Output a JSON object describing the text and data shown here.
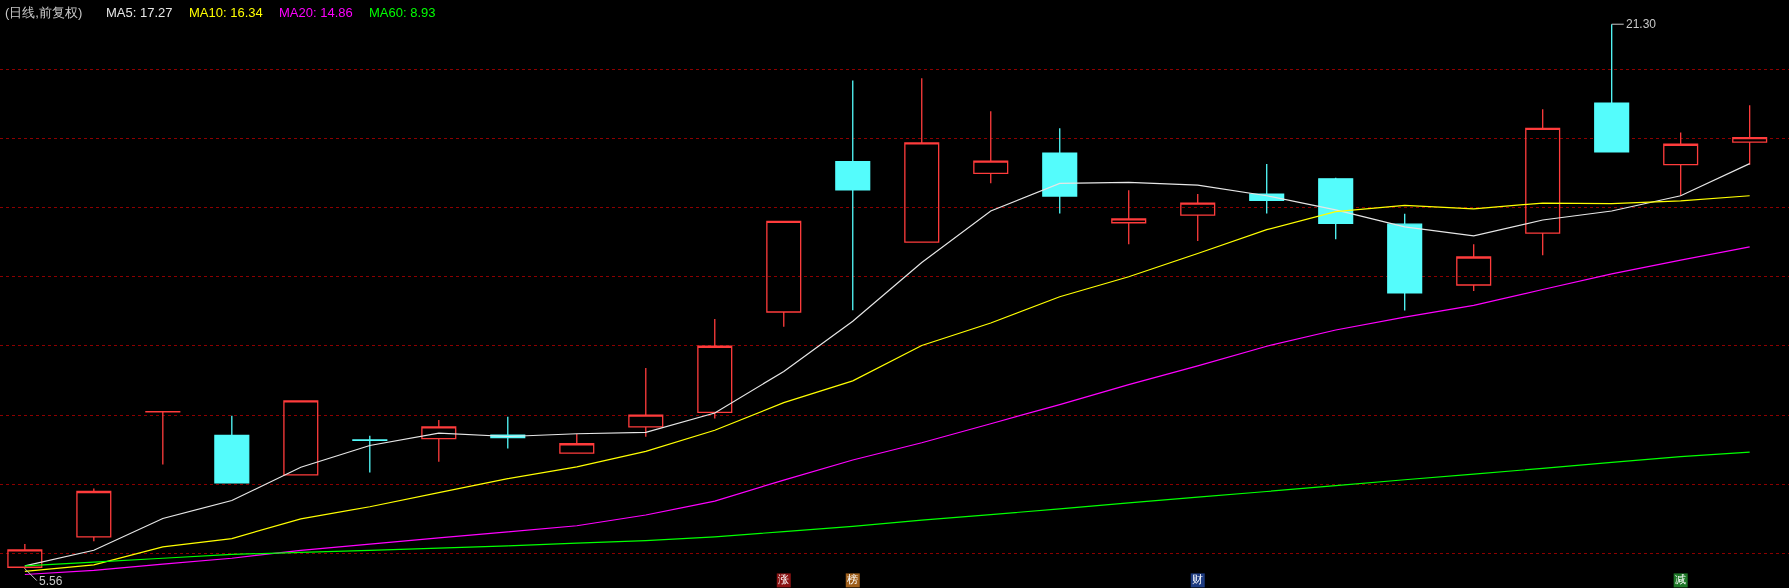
{
  "chart_data": {
    "type": "candlestick",
    "title": "(日线,前复权)",
    "categories": [
      null,
      null,
      null,
      null,
      null,
      null,
      null,
      null,
      null,
      null,
      null,
      null,
      null,
      null,
      null,
      null,
      null,
      null,
      null,
      null,
      null,
      null,
      null,
      null,
      null,
      null
    ],
    "ohlc": [
      [
        5.6,
        6.27,
        5.56,
        6.1
      ],
      [
        6.48,
        7.88,
        6.35,
        7.79
      ],
      [
        10.09,
        10.1,
        8.57,
        10.1
      ],
      [
        9.41,
        9.98,
        8.04,
        8.04
      ],
      [
        8.27,
        10.41,
        8.27,
        10.41
      ],
      [
        9.28,
        9.4,
        8.34,
        9.27
      ],
      [
        9.32,
        9.86,
        8.65,
        9.66
      ],
      [
        9.42,
        9.95,
        9.03,
        9.35
      ],
      [
        8.9,
        9.45,
        8.9,
        9.17
      ],
      [
        9.66,
        11.36,
        9.37,
        10.0
      ],
      [
        10.08,
        12.78,
        9.9,
        11.99
      ],
      [
        12.98,
        15.6,
        12.55,
        15.6
      ],
      [
        17.33,
        19.67,
        13.03,
        16.51
      ],
      [
        15.0,
        19.74,
        15.0,
        17.87
      ],
      [
        16.99,
        18.78,
        16.7,
        17.34
      ],
      [
        17.57,
        18.29,
        15.83,
        16.33
      ],
      [
        15.56,
        16.5,
        14.94,
        15.67
      ],
      [
        15.78,
        16.39,
        15.03,
        16.13
      ],
      [
        16.39,
        17.26,
        15.83,
        16.21
      ],
      [
        16.83,
        16.86,
        15.08,
        15.54
      ],
      [
        15.52,
        15.82,
        13.02,
        13.53
      ],
      [
        13.76,
        14.94,
        13.59,
        14.57
      ],
      [
        15.26,
        18.84,
        14.62,
        18.29
      ],
      [
        19.02,
        21.3,
        17.61,
        17.61
      ],
      [
        17.24,
        18.17,
        16.34,
        17.83
      ],
      [
        17.89,
        18.96,
        17.24,
        18.02
      ]
    ],
    "colors": [
      "#ff3c3c",
      "#ff3c3c",
      "#ff3c3c",
      "#54fcfc",
      "#ff3c3c",
      "#54fcfc",
      "#ff3c3c",
      "#54fcfc",
      "#ff3c3c",
      "#ff3c3c",
      "#ff3c3c",
      "#ff3c3c",
      "#54fcfc",
      "#ff3c3c",
      "#ff3c3c",
      "#54fcfc",
      "#ff3c3c",
      "#ff3c3c",
      "#54fcfc",
      "#54fcfc",
      "#54fcfc",
      "#ff3c3c",
      "#ff3c3c",
      "#54fcfc",
      "#ff3c3c",
      "#ff3c3c"
    ],
    "series": [
      {
        "name": "MA5: 17.27",
        "type": "line",
        "color": "#e6e6e6",
        "values": [
          5.64,
          6.09,
          7.01,
          7.53,
          8.49,
          9.12,
          9.48,
          9.38,
          9.46,
          9.5,
          10.06,
          11.26,
          12.71,
          14.41,
          15.9,
          16.7,
          16.73,
          16.65,
          16.34,
          15.93,
          15.44,
          15.18,
          15.64,
          15.9,
          16.34,
          17.27
        ]
      },
      {
        "name": "MA10: 16.34",
        "type": "line",
        "color": "#ffff00",
        "values": [
          5.48,
          5.67,
          6.19,
          6.43,
          7.0,
          7.35,
          7.76,
          8.16,
          8.5,
          8.95,
          9.56,
          10.36,
          10.99,
          12.01,
          12.66,
          13.42,
          14.0,
          14.67,
          15.36,
          15.88,
          16.06,
          15.96,
          16.13,
          16.11,
          16.19,
          16.34
        ]
      },
      {
        "name": "MA20: 14.86",
        "type": "line",
        "color": "#ff00ff",
        "values": [
          5.39,
          5.51,
          5.69,
          5.86,
          6.09,
          6.27,
          6.45,
          6.62,
          6.8,
          7.11,
          7.51,
          8.12,
          8.7,
          9.2,
          9.75,
          10.3,
          10.88,
          11.42,
          11.99,
          12.46,
          12.83,
          13.17,
          13.63,
          14.08,
          14.48,
          14.86
        ]
      },
      {
        "name": "MA60: 8.93",
        "type": "line",
        "color": "#00ff00",
        "values": [
          5.64,
          5.75,
          5.86,
          5.97,
          6.03,
          6.09,
          6.15,
          6.22,
          6.3,
          6.37,
          6.48,
          6.63,
          6.78,
          6.96,
          7.12,
          7.29,
          7.46,
          7.63,
          7.79,
          7.96,
          8.13,
          8.29,
          8.46,
          8.63,
          8.8,
          8.93
        ]
      },
      {
        "type": "scatter",
        "marker": "square",
        "values": [
          null,
          null,
          null,
          null,
          null,
          null,
          null,
          null,
          null,
          null,
          null,
          5.22,
          5.22,
          null,
          null,
          null,
          null,
          5.22,
          null,
          null,
          null,
          null,
          null,
          null,
          5.22,
          null
        ],
        "value_labels": [
          null,
          null,
          null,
          null,
          null,
          null,
          null,
          null,
          null,
          null,
          null,
          "涨",
          "榜",
          null,
          null,
          null,
          null,
          "财",
          null,
          null,
          null,
          null,
          null,
          null,
          "减",
          null
        ],
        "colors": [
          null,
          null,
          null,
          null,
          null,
          null,
          null,
          null,
          null,
          null,
          null,
          "#8c1414",
          "#a0601c",
          null,
          null,
          null,
          null,
          "#1e3c82",
          null,
          null,
          null,
          null,
          null,
          null,
          "#1e7828",
          null
        ]
      }
    ],
    "annotations": [
      "21.30",
      "5.56"
    ],
    "ylim": [
      5.0,
      22.0
    ],
    "yticks": [
      {
        "value": 6,
        "label": null
      },
      {
        "value": 8,
        "label": null
      },
      {
        "value": 10,
        "label": null
      },
      {
        "value": 12,
        "label": null
      },
      {
        "value": 14,
        "label": null
      },
      {
        "value": 16,
        "label": null
      },
      {
        "value": 18,
        "label": null
      },
      {
        "value": 20,
        "label": null
      }
    ],
    "grid": "y"
  }
}
